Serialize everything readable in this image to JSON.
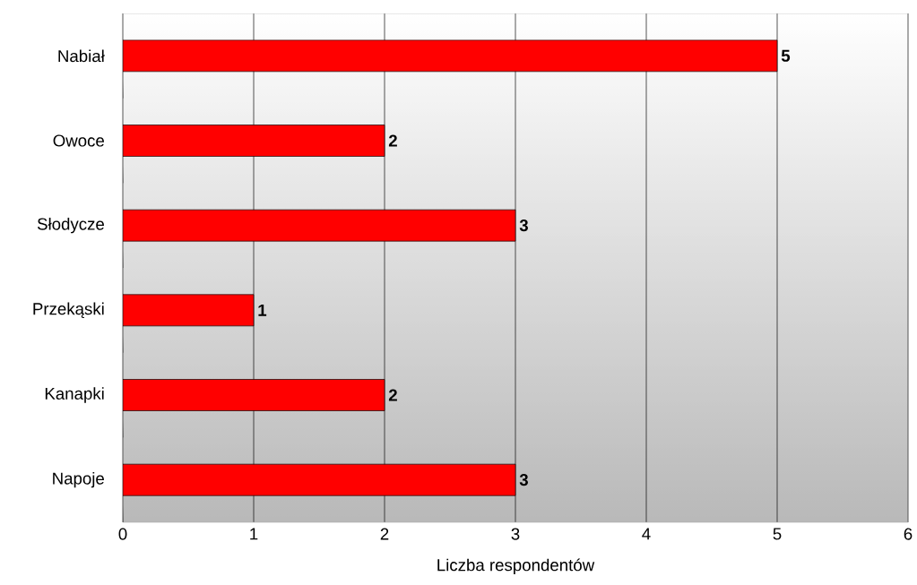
{
  "chart_data": {
    "type": "bar",
    "orientation": "horizontal",
    "categories": [
      "Nabiał",
      "Owoce",
      "Słodycze",
      "Przekąski",
      "Kanapki",
      "Napoje"
    ],
    "values": [
      5,
      2,
      3,
      1,
      2,
      3
    ],
    "color": "#ff0000",
    "xlim": [
      0,
      6
    ],
    "xticks": [
      0,
      1,
      2,
      3,
      4,
      5,
      6
    ],
    "xlabel": "Liczba respondentów",
    "data_labels": true,
    "grid": "x"
  }
}
